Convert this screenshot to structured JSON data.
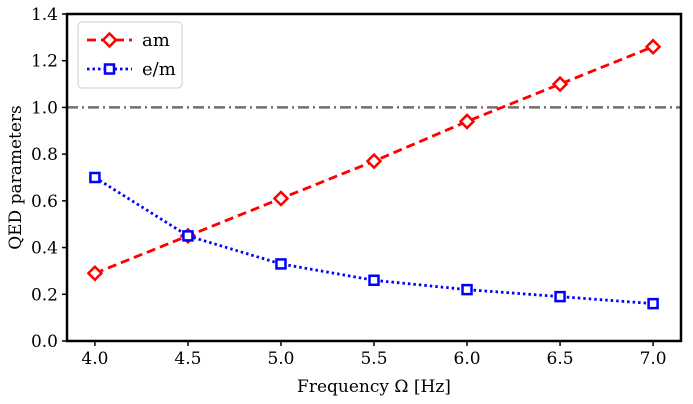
{
  "chart_data": {
    "type": "line",
    "xlabel": "Frequency Ω [Hz]",
    "ylabel": "QED parameters",
    "xlim": [
      3.85,
      7.15
    ],
    "ylim": [
      0.0,
      1.4
    ],
    "x_ticks": [
      "4.0",
      "4.5",
      "5.0",
      "5.5",
      "6.0",
      "6.5",
      "7.0"
    ],
    "y_ticks": [
      "0.0",
      "0.2",
      "0.4",
      "0.6",
      "0.8",
      "1.0",
      "1.2",
      "1.4"
    ],
    "x": [
      4.0,
      4.5,
      5.0,
      5.5,
      6.0,
      6.5,
      7.0
    ],
    "series": [
      {
        "name": "am",
        "color": "#ff0000",
        "marker": "diamond",
        "linestyle": "dashed",
        "values": [
          0.29,
          0.45,
          0.61,
          0.77,
          0.94,
          1.1,
          1.26
        ]
      },
      {
        "name": "e/m",
        "color": "#0000ff",
        "marker": "square",
        "linestyle": "dotted",
        "values": [
          0.7,
          0.45,
          0.33,
          0.26,
          0.22,
          0.19,
          0.16
        ]
      }
    ],
    "reference_line": {
      "y": 1.0,
      "color": "#707070",
      "linestyle": "dashdot"
    },
    "legend_position": "top-left",
    "grid": false
  }
}
